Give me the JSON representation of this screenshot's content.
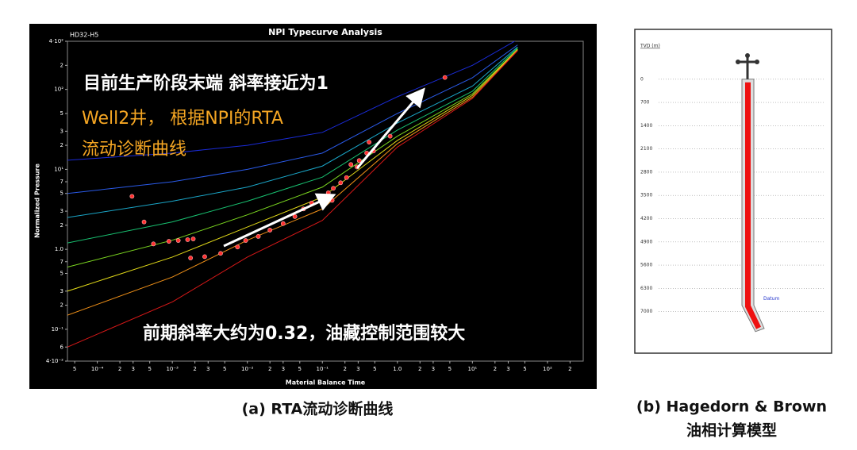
{
  "captions": [
    "(a) RTA流动诊断曲线",
    "(b) Hagedorn & Brown",
    "油相计算模型"
  ],
  "chart_data": [
    {
      "type": "typecurve",
      "title": "NPI Typecurve Analysis",
      "well": "HD32-H5",
      "x_label": "Material Balance Time",
      "y_label": "Normalized Pressure",
      "log": true,
      "xlim": [
        4e-05,
        300
      ],
      "ylim": [
        0.04,
        400
      ],
      "xticks": [
        {
          "value": 5e-05,
          "label": "5"
        },
        {
          "value": 0.0001,
          "label": "10⁻⁴"
        },
        {
          "value": 0.0002,
          "label": "2"
        },
        {
          "value": 0.0003,
          "label": "3"
        },
        {
          "value": 0.0005,
          "label": "5"
        },
        {
          "value": 0.001,
          "label": "10⁻³"
        },
        {
          "value": 0.002,
          "label": "2"
        },
        {
          "value": 0.003,
          "label": "3"
        },
        {
          "value": 0.005,
          "label": "5"
        },
        {
          "value": 0.01,
          "label": "10⁻²"
        },
        {
          "value": 0.02,
          "label": "2"
        },
        {
          "value": 0.03,
          "label": "3"
        },
        {
          "value": 0.05,
          "label": "5"
        },
        {
          "value": 0.1,
          "label": "10⁻¹"
        },
        {
          "value": 0.2,
          "label": "2"
        },
        {
          "value": 0.3,
          "label": "3"
        },
        {
          "value": 0.5,
          "label": "5"
        },
        {
          "value": 1,
          "label": "1.0"
        },
        2,
        3,
        5,
        {
          "value": 10,
          "label": "10¹"
        },
        {
          "value": 20,
          "label": "2"
        },
        {
          "value": 30,
          "label": "3"
        },
        {
          "value": 50,
          "label": "5"
        },
        {
          "value": 100,
          "label": "10²"
        },
        {
          "value": 200,
          "label": "2"
        }
      ],
      "yticks": [
        {
          "value": 400,
          "label": "4·10²"
        },
        {
          "value": 200,
          "label": "2"
        },
        {
          "value": 100,
          "label": "10²"
        },
        {
          "value": 50,
          "label": "5"
        },
        {
          "value": 30,
          "label": "3"
        },
        {
          "value": 20,
          "label": "2"
        },
        {
          "value": 10,
          "label": "10¹"
        },
        7,
        5,
        3,
        2,
        {
          "value": 1,
          "label": "1.0"
        },
        {
          "value": 0.7,
          "label": "7"
        },
        {
          "value": 0.5,
          "label": "5"
        },
        {
          "value": 0.3,
          "label": "3"
        },
        {
          "value": 0.2,
          "label": "2"
        },
        {
          "value": 0.1,
          "label": "10⁻¹"
        },
        {
          "value": 0.06,
          "label": "6"
        },
        {
          "value": 0.04,
          "label": "4·10⁻²"
        }
      ],
      "x": [
        4e-05,
        0.001,
        0.01,
        0.1,
        1,
        10,
        40
      ],
      "series": [
        {
          "color": "#1a2bd8",
          "values": [
            13,
            16,
            20,
            29,
            81,
            200,
            420
          ]
        },
        {
          "color": "#2a5ae8",
          "values": [
            5,
            7,
            10,
            16,
            50,
            140,
            360
          ]
        },
        {
          "color": "#1aa6c8",
          "values": [
            2.5,
            4,
            6,
            11,
            38,
            110,
            340
          ]
        },
        {
          "color": "#18c070",
          "values": [
            1.2,
            2.2,
            4,
            8,
            31,
            95,
            330
          ]
        },
        {
          "color": "#7cd820",
          "values": [
            0.6,
            1.3,
            2.7,
            6,
            26,
            88,
            320
          ]
        },
        {
          "color": "#e0d818",
          "values": [
            0.3,
            0.8,
            1.9,
            4.5,
            23,
            84,
            315
          ]
        },
        {
          "color": "#f09018",
          "values": [
            0.15,
            0.45,
            1.3,
            3.2,
            21,
            80,
            310
          ]
        },
        {
          "color": "#d81818",
          "values": [
            0.06,
            0.22,
            0.8,
            2.3,
            19,
            77,
            305
          ]
        }
      ],
      "points": {
        "color": "#ff3030",
        "x": [
          0.00029,
          0.00042,
          0.00056,
          0.0009,
          0.0012,
          0.0016,
          0.0019,
          0.00175,
          0.0027,
          0.0044,
          0.0074,
          0.0095,
          0.014,
          0.02,
          0.03,
          0.043,
          0.056,
          0.072,
          0.093,
          0.12,
          0.135,
          0.14,
          0.175,
          0.21,
          0.24,
          0.29,
          0.31,
          0.39,
          0.42,
          0.48,
          0.8,
          4.3
        ],
        "values": [
          4.6,
          2.2,
          1.17,
          1.26,
          1.29,
          1.32,
          1.35,
          0.78,
          0.81,
          0.89,
          1.07,
          1.29,
          1.45,
          1.74,
          2.1,
          2.57,
          3.2,
          3.8,
          4.6,
          5.1,
          4.1,
          5.8,
          6.8,
          7.9,
          11.5,
          10.7,
          12.9,
          16,
          21.9,
          17,
          26,
          141
        ]
      },
      "annotations": [
        {
          "text": "目前生产阶段末端 斜率接近为1",
          "color": "#ffffff"
        },
        {
          "text": "Well2井， 根据NPI的RTA",
          "color": "#f5a623"
        },
        {
          "text": "流动诊断曲线",
          "color": "#f5a623"
        },
        {
          "text": "前期斜率大约为0.32，油藏控制范围较大",
          "color": "#ffffff"
        }
      ]
    },
    {
      "type": "wellbore",
      "y_label": "TVD (m)",
      "datum": "Datum",
      "ylim": [
        -1500,
        8250
      ],
      "yticks": [
        0,
        700,
        1400,
        2100,
        2800,
        3500,
        4200,
        4900,
        5600,
        6300,
        7000
      ],
      "well_depth": 7600,
      "color": "#ee1111"
    }
  ]
}
